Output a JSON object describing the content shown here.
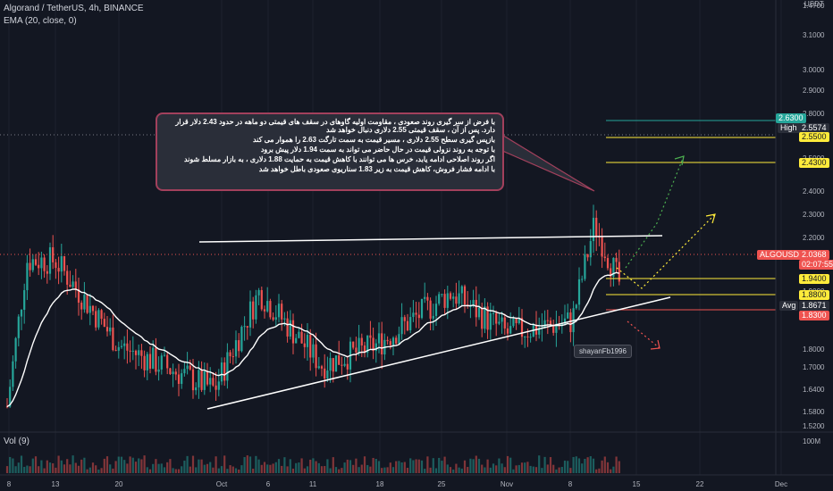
{
  "header": {
    "symbol_line": "Algorand / TetherUS, 4h, BINANCE",
    "ema_line": "EMA (20, close, 0)",
    "volume_label": "Vol (9)",
    "currency": "USDT"
  },
  "price_axis": {
    "ticks": [
      "3.1000",
      "3.0000",
      "2.9000",
      "2.8000",
      "2.7000",
      "2.5000",
      "2.4000",
      "2.3000",
      "2.2000",
      "2.1000",
      "1.9000",
      "1.8000",
      "1.7000",
      "1.6400",
      "1.5800",
      "1.5200",
      "1.4700"
    ],
    "top_partial": "3.2000",
    "volume_tick": "100M"
  },
  "time_axis": [
    "8",
    "13",
    "20",
    "Oct",
    "6",
    "11",
    "18",
    "25",
    "Nov",
    "8",
    "15",
    "22",
    "Dec"
  ],
  "price_badges": [
    {
      "name": "high-label",
      "label": "High",
      "value": "2.5574",
      "color": "#2a2e39",
      "text": "#ffffff"
    },
    {
      "name": "level-2630",
      "label": "",
      "value": "2.6300",
      "color": "#26a69a",
      "text": "#ffffff"
    },
    {
      "name": "level-2550",
      "label": "",
      "value": "2.5500",
      "color": "#ffeb3b",
      "text": "#131722"
    },
    {
      "name": "level-2430",
      "label": "",
      "value": "2.4300",
      "color": "#ffeb3b",
      "text": "#131722"
    },
    {
      "name": "symbol-price",
      "label": "ALGOUSDT",
      "value": "2.0368",
      "color": "#ef5350",
      "text": "#ffffff"
    },
    {
      "name": "level-1940",
      "label": "",
      "value": "1.9400",
      "color": "#ffeb3b",
      "text": "#131722"
    },
    {
      "name": "level-1880",
      "label": "",
      "value": "1.8800",
      "color": "#ffeb3b",
      "text": "#131722"
    },
    {
      "name": "avg-label",
      "label": "Avg",
      "value": "1.8671",
      "color": "#2a2e39",
      "text": "#ffffff"
    },
    {
      "name": "level-1830",
      "label": "",
      "value": "1.8300",
      "color": "#ef5350",
      "text": "#ffffff"
    }
  ],
  "countdown": "02:07:55",
  "annotation": {
    "lines": [
      "با فرض از سر گیری روند صعودی ، مقاومت اولیه گاوهای در سقف های قیمتی دو ماهه در حدود 2.43 دلار قرار دارد. پس از آن ، سقف قیمتی 2.55 دلاری دنبال خواهد شد",
      "بازپس گیری سطح 2.55 دلاری ، مسیر قیمت به سمت تارگت 2.63 را هموار می کند",
      "با توجه به روند نزولی قیمت  در حال حاضر می تواند به سمت  1.94 دلار پیش برود",
      "اگر روند اصلاحی ادامه یابد، خرس ها می توانند با کاهش قیمت به حمایت 1.88 دلاری ، به بازار مسلط شوند",
      "با ادامه فشار فروش، کاهش قیمت به زیر 1.83  سناریوی صعودی  باطل خواهد شد"
    ],
    "author": "shayanFb1996"
  },
  "colors": {
    "up": "#26a69a",
    "down": "#ef5350",
    "ema": "#ffffff",
    "bg": "#131722",
    "grid": "#1e222d",
    "level": "#ffeb3b"
  },
  "chart_data": {
    "type": "line",
    "title": "Algorand / TetherUS, 4h, BINANCE",
    "xlabel": "",
    "ylabel": "",
    "x_ticks": [
      "8",
      "13",
      "20",
      "Oct",
      "6",
      "11",
      "18",
      "25",
      "Nov",
      "8",
      "15",
      "22",
      "Dec"
    ],
    "ylim": [
      1.47,
      3.2
    ],
    "close_path": [
      {
        "x": "8",
        "y": 1.55
      },
      {
        "x": "13",
        "y": 2.15
      },
      {
        "x": "20",
        "y": 1.8
      },
      {
        "x": "Oct",
        "y": 1.62
      },
      {
        "x": "6",
        "y": 2.02
      },
      {
        "x": "11",
        "y": 1.72
      },
      {
        "x": "18",
        "y": 1.8
      },
      {
        "x": "25",
        "y": 2.02
      },
      {
        "x": "Nov",
        "y": 1.85
      },
      {
        "x": "8",
        "y": 1.9
      },
      {
        "x": "8",
        "y": 2.3
      },
      {
        "x": "8",
        "y": 2.04
      }
    ],
    "series": [
      {
        "name": "EMA (20, close, 0)",
        "type": "line"
      },
      {
        "name": "Vol (9)",
        "type": "bar"
      }
    ],
    "horizontal_levels": [
      2.63,
      2.55,
      2.43,
      1.94,
      1.88,
      1.83
    ],
    "last_price": 2.0368,
    "high": 2.5574,
    "avg": 1.8671,
    "grid": false
  }
}
